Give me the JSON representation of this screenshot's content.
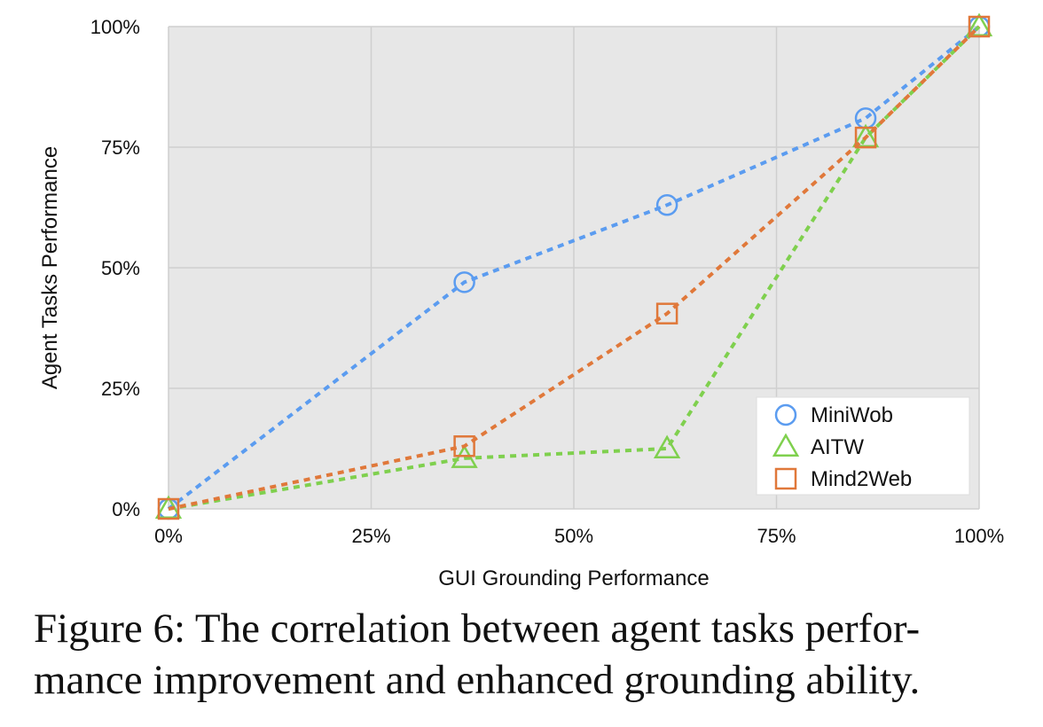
{
  "chart_data": {
    "type": "line",
    "xlabel": "GUI Grounding Performance",
    "ylabel": "Agent Tasks Performance",
    "xlim": [
      0,
      100
    ],
    "ylim": [
      0,
      100
    ],
    "x_ticks": [
      "0%",
      "25%",
      "50%",
      "75%",
      "100%"
    ],
    "y_ticks": [
      "0%",
      "25%",
      "50%",
      "75%",
      "100%"
    ],
    "grid": true,
    "legend_position": "bottom-right",
    "series": [
      {
        "name": "MiniWob",
        "marker": "circle",
        "color": "#5b9cf0",
        "x": [
          0,
          36.5,
          61.5,
          86,
          100
        ],
        "y": [
          0,
          47,
          63,
          81,
          100
        ]
      },
      {
        "name": "AITW",
        "marker": "triangle",
        "color": "#7fd04e",
        "x": [
          0,
          36.5,
          61.5,
          86,
          100
        ],
        "y": [
          0,
          10.5,
          12.5,
          77,
          100
        ]
      },
      {
        "name": "Mind2Web",
        "marker": "square",
        "color": "#e0783a",
        "x": [
          0,
          36.5,
          61.5,
          86,
          100
        ],
        "y": [
          0,
          13,
          40.5,
          77,
          100
        ]
      }
    ]
  },
  "caption": {
    "line1": "Figure 6: The correlation between agent tasks perfor-",
    "line2": "mance improvement and enhanced grounding ability."
  }
}
